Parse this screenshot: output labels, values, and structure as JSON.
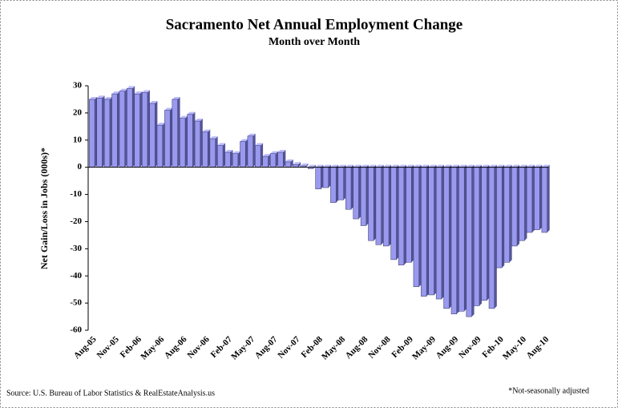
{
  "chart_data": {
    "type": "bar",
    "title": "Sacramento Net Annual Employment Change",
    "subtitle": "Month over Month",
    "y_label": "Net Gain/Loss in Jobs (000s)*",
    "source": "Source: U.S. Bureau of Labor Statistics & RealEstateAnalysis.us",
    "note": "*Not-seasonally adjusted",
    "color": "#9999ee",
    "categories": [
      "Aug-05",
      null,
      null,
      "Nov-05",
      null,
      null,
      "Feb-06",
      null,
      null,
      "May-06",
      null,
      null,
      "Aug-06",
      null,
      null,
      "Nov-06",
      null,
      null,
      "Feb-07",
      null,
      null,
      "May-07",
      null,
      null,
      "Aug-07",
      null,
      null,
      "Nov-07",
      null,
      null,
      "Feb-08",
      null,
      null,
      "May-08",
      null,
      null,
      "Aug-08",
      null,
      null,
      "Nov-08",
      null,
      null,
      "Feb-09",
      null,
      null,
      "May-09",
      null,
      null,
      "Aug-09",
      null,
      null,
      "Nov-09",
      null,
      null,
      "Feb-10",
      null,
      null,
      "May-10",
      null,
      null,
      "Aug-10"
    ],
    "values": [
      25,
      25.5,
      25,
      27,
      28,
      29,
      27,
      27.5,
      23.5,
      15.5,
      21,
      25,
      18,
      19.5,
      17,
      13,
      10.5,
      8,
      5.5,
      5,
      9.5,
      11.5,
      8,
      4,
      5,
      5.5,
      2,
      1,
      0.5,
      -0.5,
      -8,
      -7.5,
      -13,
      -12,
      -15.5,
      -19,
      -21.5,
      -27,
      -28.5,
      -29,
      -34,
      -36,
      -35,
      -44,
      -47.5,
      -47,
      -48.5,
      -52,
      -54,
      -53,
      -55,
      -51,
      -49,
      -52,
      -37,
      -35,
      -29,
      -27,
      -24,
      -23,
      -24
    ],
    "ylim": [
      -60,
      30
    ],
    "yticks": [
      -60,
      -50,
      -40,
      -30,
      -20,
      -10,
      0,
      10,
      20,
      30
    ]
  }
}
